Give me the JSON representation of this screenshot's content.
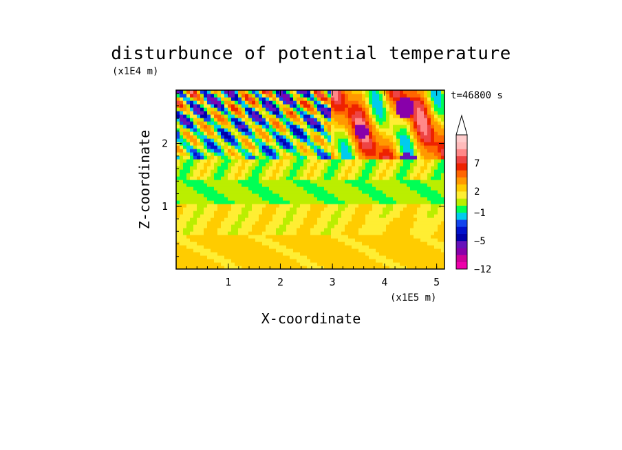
{
  "chart_data": {
    "type": "heatmap",
    "title": "disturbunce of potential temperature",
    "xlabel": "X-coordinate",
    "ylabel": "Z-coordinate",
    "x_unit": "(x1E5 m)",
    "y_unit": "(x1E4 m)",
    "time_label": "t=46800 s",
    "xlim": [
      0,
      5.15
    ],
    "ylim": [
      0,
      2.85
    ],
    "x_ticks": [
      1,
      2,
      3,
      4,
      5
    ],
    "y_ticks": [
      1,
      2
    ],
    "x_tick_labels": [
      "1",
      "2",
      "3",
      "4",
      "5"
    ],
    "y_tick_labels": [
      "1",
      "2"
    ],
    "colorbar": {
      "levels": [
        -12,
        -11,
        -9,
        -7,
        -5,
        -4,
        -3,
        -2,
        -1,
        0,
        1,
        2,
        3,
        5,
        6,
        7,
        8,
        9,
        11
      ],
      "labeled_levels": [
        "-12",
        "-5",
        "-1",
        "2",
        "7"
      ],
      "colors": [
        "#ee00aa",
        "#cc0099",
        "#8800aa",
        "#6611bb",
        "#0000aa",
        "#0011cc",
        "#1144ee",
        "#00ccee",
        "#00ff55",
        "#bbee00",
        "#ffee33",
        "#ffcc00",
        "#ff9900",
        "#ff6600",
        "#ee2200",
        "#ee4444",
        "#ff8888",
        "#ffbbbb",
        "#ffcccc"
      ],
      "extend_max": true
    },
    "grid": false
  }
}
